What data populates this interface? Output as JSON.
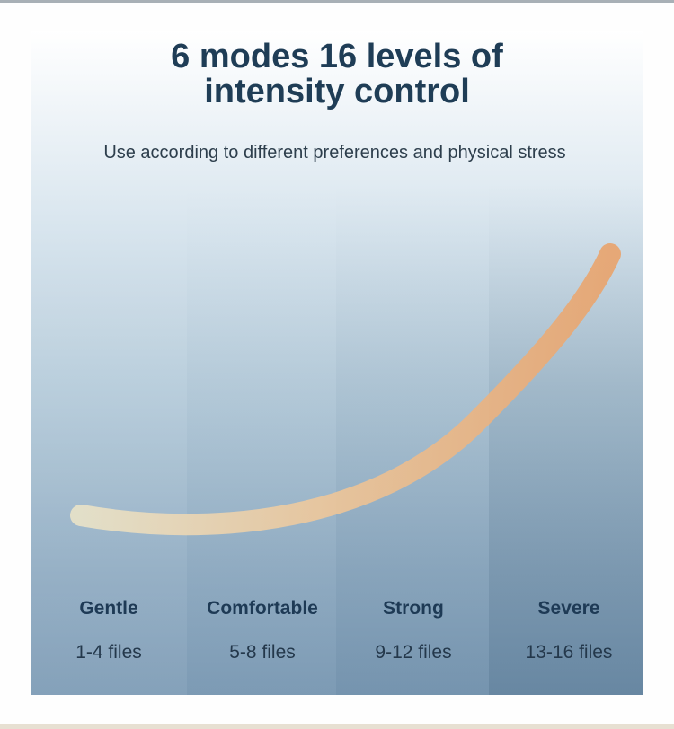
{
  "header": {
    "title_line1": "6 modes 16 levels of",
    "title_line2": "intensity control",
    "subtitle": "Use according to different preferences and physical stress"
  },
  "modes": [
    {
      "name": "Gentle",
      "range": "1-4 files"
    },
    {
      "name": "Comfortable",
      "range": "5-8 files"
    },
    {
      "name": "Strong",
      "range": "9-12 files"
    },
    {
      "name": "Severe",
      "range": "13-16 files"
    }
  ],
  "colors": {
    "title": "#1f3d56",
    "curve_start": "#e8e2c8",
    "curve_end": "#e8a46e"
  }
}
